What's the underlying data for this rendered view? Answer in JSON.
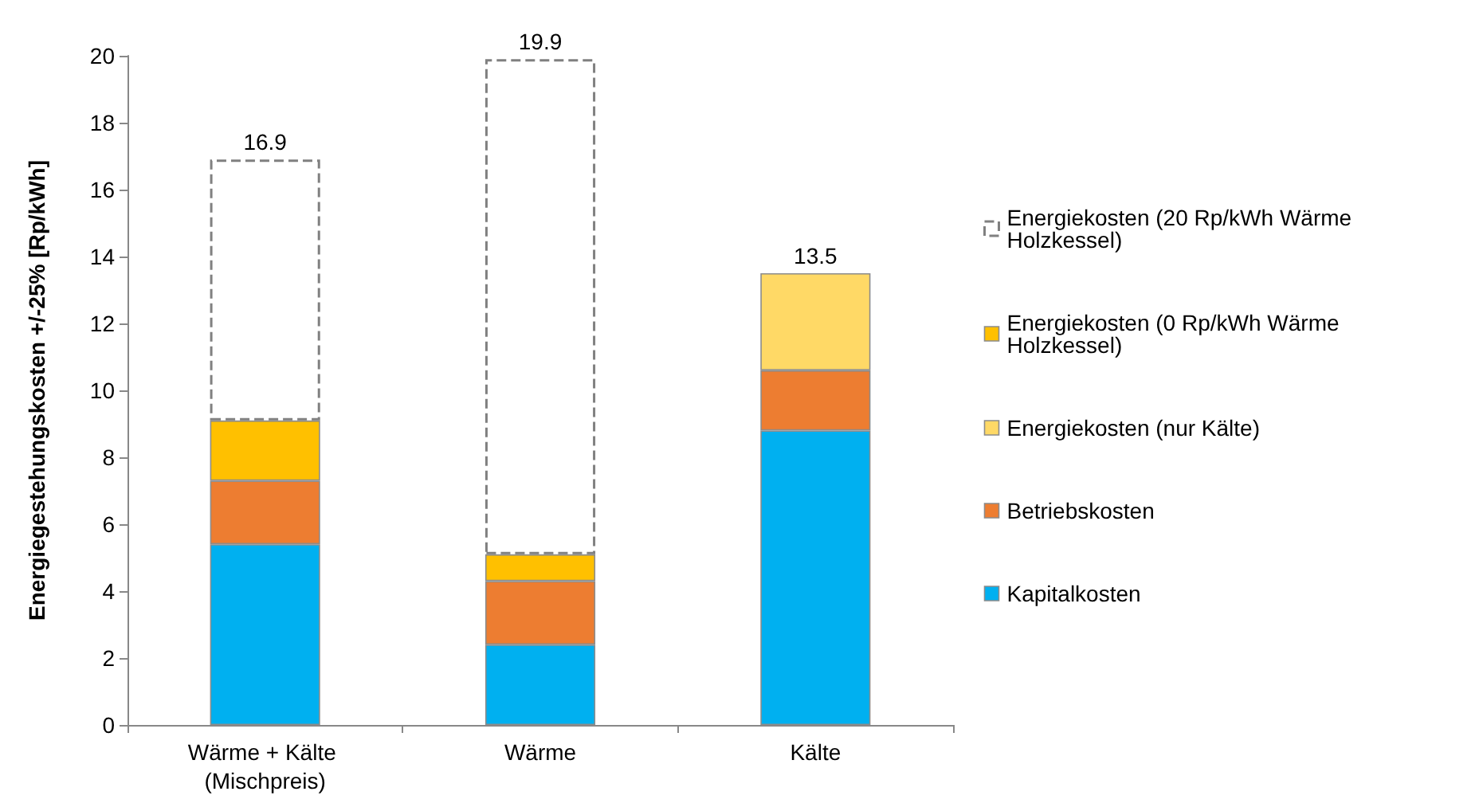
{
  "chart_data": {
    "type": "bar",
    "stacked": true,
    "ylabel": "Energiegestehungskosten +/-25% [Rp/kWh]",
    "categories": [
      "Wärme + Kälte (Mischpreis)",
      "Wärme",
      "Kälte"
    ],
    "series": [
      {
        "name": "Kapitalkosten",
        "color": "#00b0f0",
        "values": [
          5.4,
          2.4,
          8.8
        ]
      },
      {
        "name": "Betriebskosten",
        "color": "#ed7d31",
        "values": [
          1.9,
          1.9,
          1.8
        ]
      },
      {
        "name": "Energiekosten (nur Kälte)",
        "color": "#ffd966",
        "values": [
          null,
          null,
          2.9
        ]
      },
      {
        "name": "Energiekosten (0 Rp/kWh Wärme Holzkessel)",
        "color": "#ffc000",
        "values": [
          1.8,
          0.8,
          null
        ]
      },
      {
        "name": "Energiekosten (20 Rp/kWh Wärme Holzkessel)",
        "color": "#808080",
        "line_style": "dashed",
        "values": [
          7.8,
          14.8,
          null
        ]
      }
    ],
    "totals": [
      "16.9",
      "19.9",
      "13.5"
    ],
    "ylim": [
      0,
      20
    ],
    "yticks": [
      0,
      2,
      4,
      6,
      8,
      10,
      12,
      14,
      16,
      18,
      20
    ],
    "grid": false,
    "legend": "right"
  }
}
